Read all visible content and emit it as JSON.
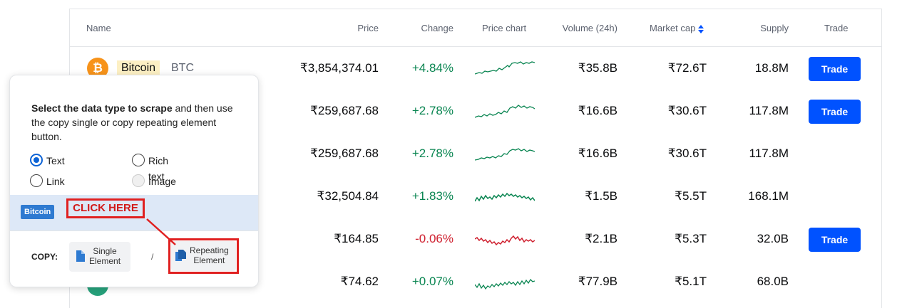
{
  "table": {
    "headers": {
      "name": "Name",
      "price": "Price",
      "change": "Change",
      "price_chart": "Price chart",
      "volume": "Volume (24h)",
      "market_cap": "Market cap",
      "supply": "Supply",
      "trade": "Trade"
    },
    "rows": [
      {
        "name": "Bitcoin",
        "symbol": "BTC",
        "price": "₹3,854,374.01",
        "change": "+4.84%",
        "volume": "₹35.8B",
        "market_cap": "₹72.6T",
        "supply": "18.8M",
        "trade": "Trade"
      },
      {
        "price": "₹259,687.68",
        "change": "+2.78%",
        "volume": "₹16.6B",
        "market_cap": "₹30.6T",
        "supply": "117.8M",
        "trade": "Trade"
      },
      {
        "price": "₹259,687.68",
        "change": "+2.78%",
        "volume": "₹16.6B",
        "market_cap": "₹30.6T",
        "supply": "117.8M"
      },
      {
        "price": "₹32,504.84",
        "change": "+1.83%",
        "volume": "₹1.5B",
        "market_cap": "₹5.5T",
        "supply": "168.1M"
      },
      {
        "price": "₹164.85",
        "change": "-0.06%",
        "volume": "₹2.1B",
        "market_cap": "₹5.3T",
        "supply": "32.0B",
        "trade": "Trade"
      },
      {
        "price": "₹74.62",
        "change": "+0.07%",
        "volume": "₹77.9B",
        "market_cap": "₹5.1T",
        "supply": "68.0B"
      }
    ]
  },
  "panel": {
    "desc_bold": "Select the data type to scrape",
    "desc_rest": " and then use the copy single or copy repeating element button.",
    "options": {
      "text": "Text",
      "rich_text": "Rich text",
      "link": "Link",
      "image": "Image"
    },
    "preview_chip": "Bitcoin",
    "click_here": "CLICK HERE",
    "copy_label": "COPY:",
    "single_line1": "Single",
    "single_line2": "Element",
    "separator": "/",
    "repeating_line1": "Repeating",
    "repeating_line2": "Element"
  },
  "icons": {
    "coin_btc": "bitcoin-icon",
    "coin_row6": "coin-icon",
    "sort": "sort-icon",
    "copy_single": "document-icon",
    "copy_repeating": "documents-icon"
  },
  "colors": {
    "positive": "#098551",
    "negative": "#cf202f",
    "trade_button": "#0052ff",
    "highlight_red": "#e02020",
    "preview_band": "#dde8f7",
    "radio_checked": "#0b63d6"
  }
}
